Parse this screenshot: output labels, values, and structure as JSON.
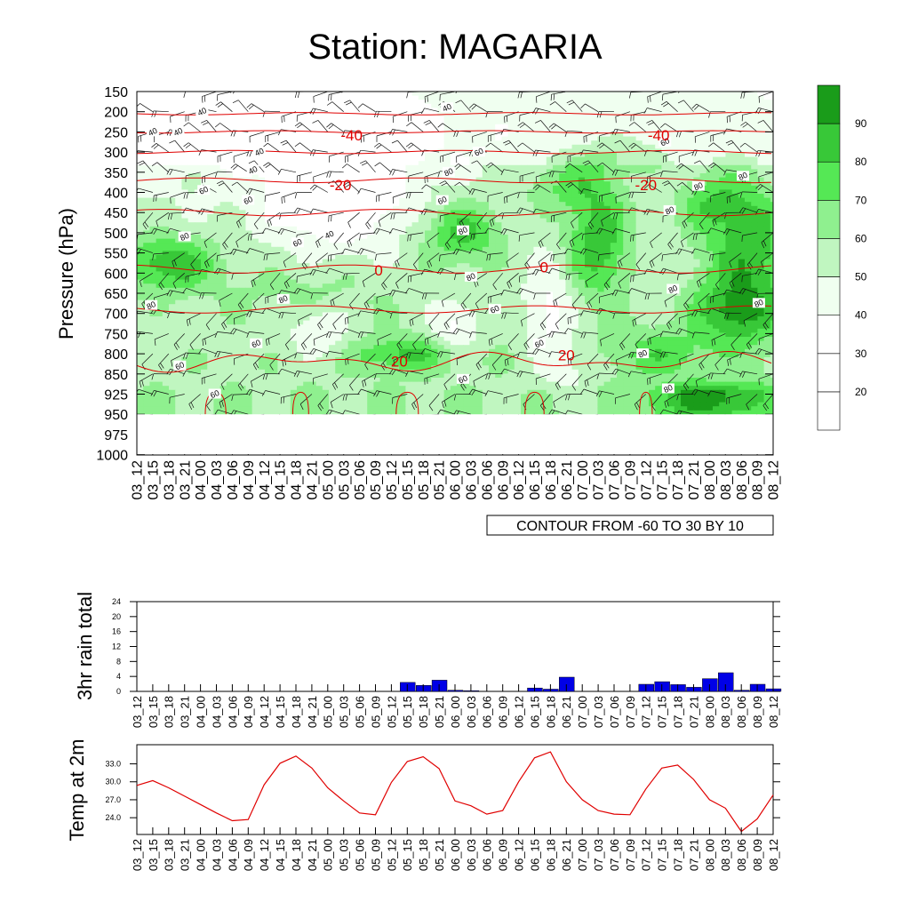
{
  "title": "Station: MAGARIA",
  "time_labels": [
    "03_12",
    "03_15",
    "03_18",
    "03_21",
    "04_00",
    "04_03",
    "04_06",
    "04_09",
    "04_12",
    "04_15",
    "04_18",
    "04_21",
    "05_00",
    "05_03",
    "05_06",
    "05_09",
    "05_12",
    "05_15",
    "05_18",
    "05_21",
    "06_00",
    "06_03",
    "06_06",
    "06_09",
    "06_12",
    "06_15",
    "06_18",
    "06_21",
    "07_00",
    "07_03",
    "07_06",
    "07_09",
    "07_12",
    "07_15",
    "07_18",
    "07_21",
    "08_00",
    "08_03",
    "08_06",
    "08_09",
    "08_12"
  ],
  "colors": {
    "green_levels": [
      "#ffffff",
      "#ffffff",
      "#ffffff",
      "#f0fff0",
      "#c0f6c0",
      "#8ff08f",
      "#55e855",
      "#38c838",
      "#1a9c1a"
    ],
    "temp_contour": "#e00000",
    "rain_bar": "#0000e6",
    "temp_line": "#e00000"
  },
  "chart_data": [
    {
      "type": "heatmap",
      "title": "Station: MAGARIA",
      "ylabel": "Pressure (hPa)",
      "xlabel": "",
      "y_ticks": [
        150,
        200,
        250,
        300,
        350,
        400,
        450,
        500,
        550,
        600,
        650,
        700,
        750,
        800,
        850,
        925,
        950,
        975,
        1000
      ],
      "x_ticks": "time_labels",
      "colorbar_ticks": [
        20,
        30,
        40,
        50,
        60,
        70,
        80,
        90
      ],
      "colorbar_levels": [
        10,
        20,
        30,
        40,
        50,
        60,
        70,
        80,
        90,
        100
      ],
      "annotation": "CONTOUR FROM -60 TO 30 BY 10",
      "humidity_labels": [
        {
          "t": 4.1,
          "p": 200,
          "v": "40"
        },
        {
          "t": 1.0,
          "p": 250,
          "v": "40"
        },
        {
          "t": 2.6,
          "p": 250,
          "v": "40"
        },
        {
          "t": 7.7,
          "p": 300,
          "v": "40"
        },
        {
          "t": 21.5,
          "p": 300,
          "v": "60"
        },
        {
          "t": 19.5,
          "p": 190,
          "v": "40"
        },
        {
          "t": 33.2,
          "p": 275,
          "v": "60"
        },
        {
          "t": 7.3,
          "p": 345,
          "v": "40"
        },
        {
          "t": 19.6,
          "p": 350,
          "v": "80"
        },
        {
          "t": 35.3,
          "p": 385,
          "v": "80"
        },
        {
          "t": 38.1,
          "p": 360,
          "v": "80"
        },
        {
          "t": 4.2,
          "p": 395,
          "v": "60"
        },
        {
          "t": 7.0,
          "p": 420,
          "v": "60"
        },
        {
          "t": 19.2,
          "p": 420,
          "v": "60"
        },
        {
          "t": 33.5,
          "p": 445,
          "v": "80"
        },
        {
          "t": 20.5,
          "p": 495,
          "v": "80"
        },
        {
          "t": 3.0,
          "p": 510,
          "v": "80"
        },
        {
          "t": 10.1,
          "p": 525,
          "v": "60"
        },
        {
          "t": 12.1,
          "p": 505,
          "v": "40"
        },
        {
          "t": 21.0,
          "p": 610,
          "v": "80"
        },
        {
          "t": 33.7,
          "p": 640,
          "v": "80"
        },
        {
          "t": 0.9,
          "p": 680,
          "v": "80"
        },
        {
          "t": 9.2,
          "p": 665,
          "v": "80"
        },
        {
          "t": 22.5,
          "p": 690,
          "v": "60"
        },
        {
          "t": 39.1,
          "p": 675,
          "v": "80"
        },
        {
          "t": 7.5,
          "p": 775,
          "v": "60"
        },
        {
          "t": 25.3,
          "p": 775,
          "v": "60"
        },
        {
          "t": 31.8,
          "p": 800,
          "v": "80"
        },
        {
          "t": 2.7,
          "p": 830,
          "v": "60"
        },
        {
          "t": 20.5,
          "p": 870,
          "v": "60"
        },
        {
          "t": 4.9,
          "p": 925,
          "v": "60"
        },
        {
          "t": 33.4,
          "p": 905,
          "v": "80"
        }
      ],
      "temperature_labels": [
        {
          "t": 13.5,
          "p": 258,
          "v": "-40"
        },
        {
          "t": 32.8,
          "p": 258,
          "v": "-40"
        },
        {
          "t": 12.8,
          "p": 381,
          "v": "-20"
        },
        {
          "t": 32.0,
          "p": 381,
          "v": "-20"
        },
        {
          "t": 15.2,
          "p": 593,
          "v": "0"
        },
        {
          "t": 25.6,
          "p": 585,
          "v": "0"
        },
        {
          "t": 16.5,
          "p": 818,
          "v": "20"
        },
        {
          "t": 27.0,
          "p": 803,
          "v": "20"
        }
      ]
    },
    {
      "type": "bar",
      "ylabel": "3hr rain total",
      "categories": "time_labels",
      "y_ticks": [
        0,
        4,
        8,
        12,
        16,
        20,
        24
      ],
      "ylim": [
        0,
        24
      ],
      "values": [
        0,
        0,
        0,
        0,
        0,
        0,
        0,
        0,
        0,
        0,
        0,
        0,
        0,
        0,
        0,
        0,
        0,
        2.4,
        1.6,
        3.0,
        0.3,
        0.2,
        0,
        0,
        0,
        0.9,
        0.6,
        3.8,
        0,
        0,
        0,
        0,
        1.9,
        2.6,
        1.8,
        1.1,
        3.4,
        5.0,
        0.3,
        1.9,
        0.7
      ]
    },
    {
      "type": "line",
      "ylabel": "Temp at 2m",
      "categories": "time_labels",
      "y_ticks": [
        24.0,
        27.0,
        30.0,
        33.0
      ],
      "ylim": [
        21.2,
        36.2
      ],
      "values": [
        29.4,
        30.2,
        29.0,
        27.6,
        26.2,
        24.8,
        23.5,
        23.7,
        29.5,
        33.1,
        34.3,
        32.3,
        29.0,
        26.8,
        24.8,
        24.5,
        29.9,
        33.4,
        34.2,
        32.2,
        26.8,
        26.0,
        24.6,
        25.2,
        30.0,
        34.0,
        35.0,
        30.0,
        27.0,
        25.2,
        24.6,
        24.5,
        28.8,
        32.3,
        32.8,
        30.4,
        27.0,
        25.6,
        21.7,
        23.8,
        27.8
      ]
    }
  ]
}
